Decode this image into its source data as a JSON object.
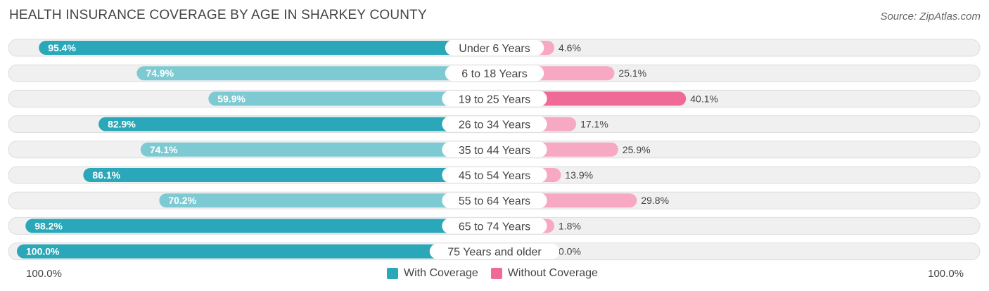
{
  "header": {
    "title": "HEALTH INSURANCE COVERAGE BY AGE IN SHARKEY COUNTY",
    "source": "Source: ZipAtlas.com"
  },
  "colors": {
    "with_coverage_strong": "#2aa7b8",
    "with_coverage_light": "#7dcad3",
    "without_coverage_strong": "#f06a97",
    "without_coverage_light": "#f7a8c2",
    "row_background": "#f0f0f0",
    "row_border": "#dddddd"
  },
  "axis": {
    "left_label": "100.0%",
    "right_label": "100.0%"
  },
  "legend": {
    "with_label": "With Coverage",
    "without_label": "Without Coverage"
  },
  "chart_data": {
    "type": "bar",
    "title": "HEALTH INSURANCE COVERAGE BY AGE IN SHARKEY COUNTY",
    "categories": [
      "Under 6 Years",
      "6 to 18 Years",
      "19 to 25 Years",
      "26 to 34 Years",
      "35 to 44 Years",
      "45 to 54 Years",
      "55 to 64 Years",
      "65 to 74 Years",
      "75 Years and older"
    ],
    "series": [
      {
        "name": "With Coverage",
        "values": [
          95.4,
          74.9,
          59.9,
          82.9,
          74.1,
          86.1,
          70.2,
          98.2,
          100.0
        ],
        "labels": [
          "95.4%",
          "74.9%",
          "59.9%",
          "82.9%",
          "74.1%",
          "86.1%",
          "70.2%",
          "98.2%",
          "100.0%"
        ]
      },
      {
        "name": "Without Coverage",
        "values": [
          4.6,
          25.1,
          40.1,
          17.1,
          25.9,
          13.9,
          29.8,
          1.8,
          0.0
        ],
        "labels": [
          "4.6%",
          "25.1%",
          "40.1%",
          "17.1%",
          "25.9%",
          "13.9%",
          "29.8%",
          "1.8%",
          "0.0%"
        ]
      }
    ],
    "xlim": [
      -100,
      100
    ],
    "legend_position": "bottom-center"
  }
}
